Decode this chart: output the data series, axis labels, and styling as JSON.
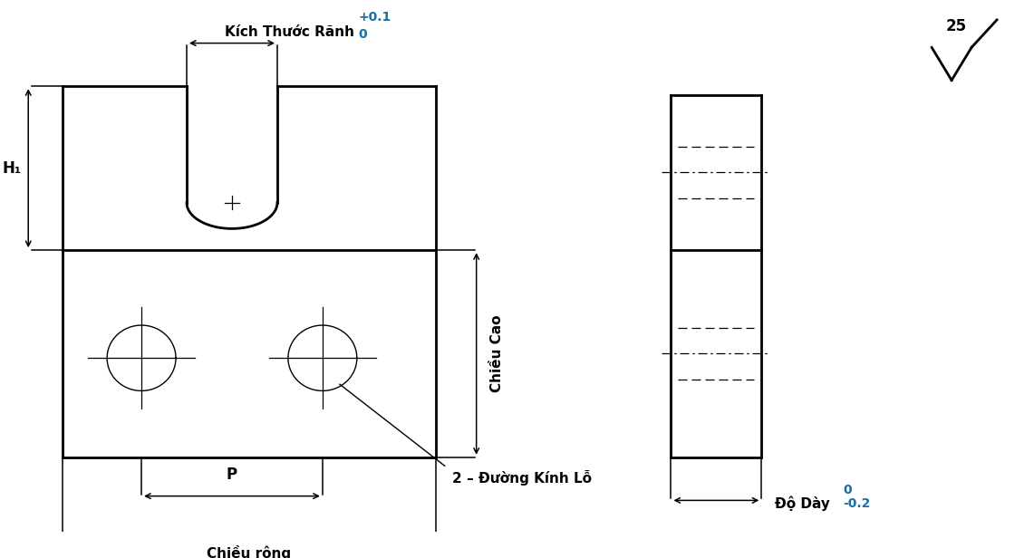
{
  "bg_color": "#ffffff",
  "line_color": "#000000",
  "dim_color": "#000000",
  "tol_color": "#1a6fa8",
  "text_color": "#000000",
  "labels": {
    "slot_dim": "Kích Thước Rãnh",
    "slot_tol_top": "+0.1",
    "slot_tol_bot": "0",
    "h1": "H₁",
    "chieu_cao": "Chiều Cao",
    "p": "P",
    "chieu_rong": "Chiều rộng",
    "do_day": "Độ Dày",
    "do_day_tol_top": "0",
    "do_day_tol_bot": "-0.2",
    "label_2dkl": "2 – Đường Kính Lỗ",
    "roughness": "25"
  }
}
